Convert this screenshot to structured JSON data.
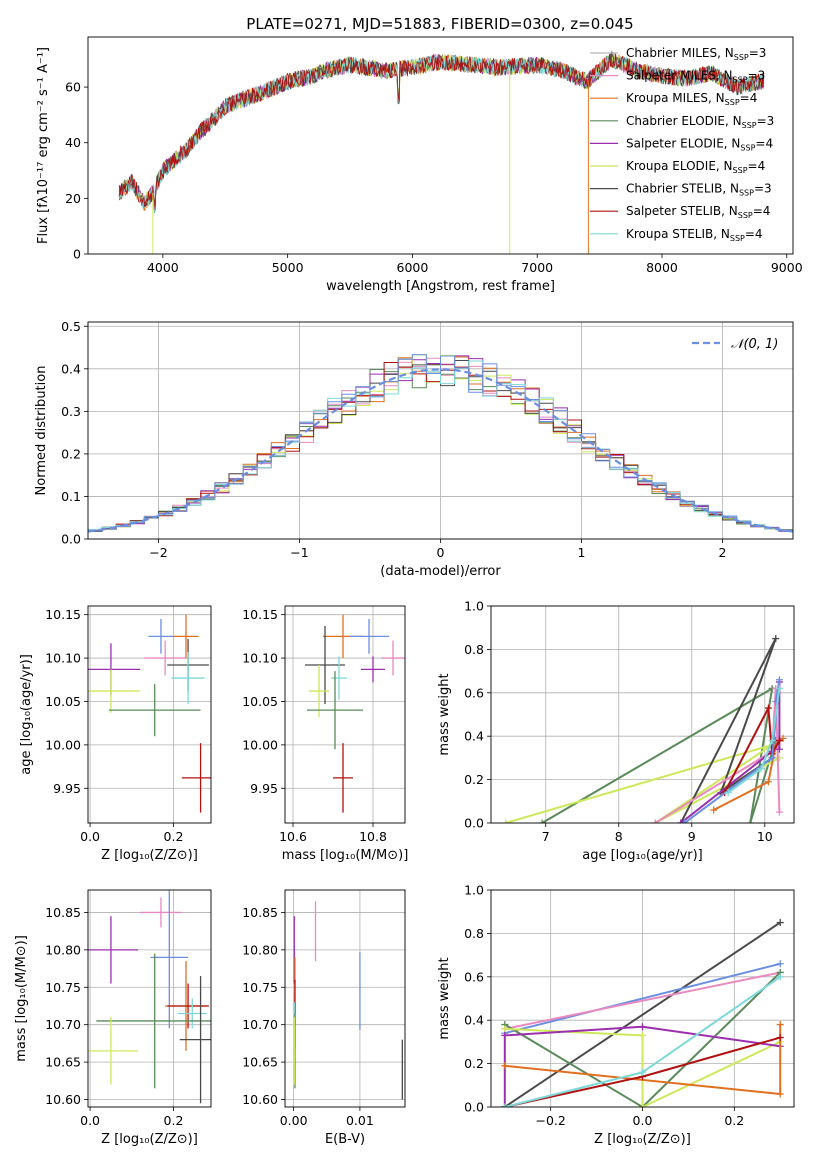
{
  "figure": {
    "title": "PLATE=0271, MJD=51883, FIBERID=0300, z=0.045"
  },
  "legend": [
    {
      "base": "Chabrier MILES, N",
      "sub": "SSP",
      "tail": "=3",
      "color": "#b8b8b8"
    },
    {
      "base": "Salpeter MILES, N",
      "sub": "SSP",
      "tail": "=3",
      "color": "#e889c0"
    },
    {
      "base": "Kroupa MILES, N",
      "sub": "SSP",
      "tail": "=4",
      "color": "#e07020"
    },
    {
      "base": "Chabrier ELODIE, N",
      "sub": "SSP",
      "tail": "=3",
      "color": "#5a8a5a"
    },
    {
      "base": "Salpeter ELODIE, N",
      "sub": "SSP",
      "tail": "=4",
      "color": "#9b2fae"
    },
    {
      "base": "Kroupa ELODIE, N",
      "sub": "SSP",
      "tail": "=4",
      "color": "#cde85a"
    },
    {
      "base": "Chabrier STELIB, N",
      "sub": "SSP",
      "tail": "=3",
      "color": "#4a4a4a"
    },
    {
      "base": "Salpeter STELIB, N",
      "sub": "SSP",
      "tail": "=4",
      "color": "#b01010"
    },
    {
      "base": "Kroupa STELIB, N",
      "sub": "SSP",
      "tail": "=4",
      "color": "#7dd8d8"
    }
  ],
  "extra_colors": {
    "blue": "#6a8fe0"
  },
  "chart_data": [
    {
      "id": "spectrum",
      "type": "line",
      "xlabel": "wavelength [Angstrom, rest frame]",
      "ylabel": "Flux [fλ10⁻¹⁷ erg cm⁻² s⁻¹ A⁻¹]",
      "xlim": [
        3400,
        9050
      ],
      "ylim": [
        0,
        78
      ],
      "xticks": [
        4000,
        5000,
        6000,
        7000,
        8000,
        9000
      ],
      "yticks": [
        0,
        20,
        40,
        60
      ],
      "grid": false,
      "legend_position": "upper right",
      "x": [
        3650,
        3750,
        3850,
        3920,
        4000,
        4100,
        4200,
        4300,
        4400,
        4500,
        4600,
        4800,
        5000,
        5200,
        5300,
        5500,
        5800,
        6000,
        6200,
        6500,
        6700,
        7000,
        7200,
        7400,
        7600,
        7800,
        8000,
        8200,
        8400,
        8600,
        8800
      ],
      "y": [
        22,
        26,
        18,
        22,
        30,
        34,
        38,
        44,
        48,
        53,
        55,
        58,
        62,
        64,
        66,
        68,
        66,
        67,
        69,
        68,
        67,
        68,
        66,
        62,
        70,
        66,
        64,
        63,
        65,
        60,
        62
      ],
      "drops": [
        {
          "x": 3920,
          "series": 5
        },
        {
          "x": 6780,
          "series": 5
        },
        {
          "x": 7410,
          "series": 2
        }
      ]
    },
    {
      "id": "residuals",
      "type": "histogram",
      "xlabel": "(data-model)/error",
      "ylabel": "Normed distribution",
      "xlim": [
        -2.5,
        2.5
      ],
      "ylim": [
        0,
        0.51
      ],
      "xticks": [
        -2,
        -1,
        0,
        1,
        2
      ],
      "yticks": [
        0.0,
        0.1,
        0.2,
        0.3,
        0.4,
        0.5
      ],
      "grid": true,
      "legend_position": "upper right",
      "reference_label": "𝒩(0, 1)",
      "reference_color": "#6a8fe0",
      "bin_width": 0.1
    },
    {
      "id": "age-vs-Z",
      "type": "errorbar",
      "xlabel": "Z [log₁₀(Z/Z⊙)]",
      "ylabel": "age  [log₁₀(age/yr)]",
      "xlim": [
        -0.005,
        0.29
      ],
      "ylim": [
        9.91,
        10.16
      ],
      "xticks": [
        0.0,
        0.2
      ],
      "yticks": [
        9.95,
        10.0,
        10.05,
        10.1,
        10.15
      ],
      "grid": true,
      "points": [
        {
          "c": "#e889c0",
          "x": 0.18,
          "y": 10.1,
          "xe": 0.05,
          "ye": 0.02
        },
        {
          "c": "#e07020",
          "x": 0.23,
          "y": 10.125,
          "xe": 0.03,
          "ye": 0.025
        },
        {
          "c": "#6a8fe0",
          "x": 0.17,
          "y": 10.125,
          "xe": 0.03,
          "ye": 0.02
        },
        {
          "c": "#9b2fae",
          "x": 0.05,
          "y": 10.087,
          "xe": 0.07,
          "ye": 0.03
        },
        {
          "c": "#cde85a",
          "x": 0.05,
          "y": 10.062,
          "xe": 0.07,
          "ye": 0.025
        },
        {
          "c": "#5a8a5a",
          "x": 0.155,
          "y": 10.04,
          "xe": 0.11,
          "ye": 0.03
        },
        {
          "c": "#4a4a4a",
          "x": 0.235,
          "y": 10.092,
          "xe": 0.05,
          "ye": 0.03
        },
        {
          "c": "#7dd8d8",
          "x": 0.235,
          "y": 10.077,
          "xe": 0.04,
          "ye": 0.03
        },
        {
          "c": "#b01010",
          "x": 0.265,
          "y": 9.962,
          "xe": 0.045,
          "ye": 0.04
        }
      ]
    },
    {
      "id": "age-vs-mass",
      "type": "errorbar",
      "xlabel": "mass [log₁₀(M/M⊙)]",
      "ylabel": "",
      "xlim": [
        10.58,
        10.88
      ],
      "ylim": [
        9.91,
        10.16
      ],
      "xticks": [
        10.6,
        10.8
      ],
      "yticks": [
        9.95,
        10.0,
        10.05,
        10.1,
        10.15
      ],
      "grid": true,
      "points": [
        {
          "c": "#e07020",
          "x": 10.725,
          "y": 10.125,
          "xe": 0.05,
          "ye": 0.025
        },
        {
          "c": "#6a8fe0",
          "x": 10.79,
          "y": 10.125,
          "xe": 0.05,
          "ye": 0.02
        },
        {
          "c": "#e889c0",
          "x": 10.85,
          "y": 10.1,
          "xe": 0.03,
          "ye": 0.02
        },
        {
          "c": "#9b2fae",
          "x": 10.8,
          "y": 10.087,
          "xe": 0.03,
          "ye": 0.015
        },
        {
          "c": "#4a4a4a",
          "x": 10.68,
          "y": 10.092,
          "xe": 0.05,
          "ye": 0.045
        },
        {
          "c": "#7dd8d8",
          "x": 10.715,
          "y": 10.077,
          "xe": 0.02,
          "ye": 0.025
        },
        {
          "c": "#cde85a",
          "x": 10.665,
          "y": 10.062,
          "xe": 0.025,
          "ye": 0.03
        },
        {
          "c": "#5a8a5a",
          "x": 10.705,
          "y": 10.04,
          "xe": 0.07,
          "ye": 0.045
        },
        {
          "c": "#b01010",
          "x": 10.725,
          "y": 9.962,
          "xe": 0.025,
          "ye": 0.04
        }
      ]
    },
    {
      "id": "weight-vs-age",
      "type": "line",
      "xlabel": "age  [log₁₀(age/yr)]",
      "ylabel": "mass weight",
      "xlim": [
        6.25,
        10.4
      ],
      "ylim": [
        0,
        1.0
      ],
      "xticks": [
        7,
        8,
        9,
        10
      ],
      "yticks": [
        0.0,
        0.2,
        0.4,
        0.6,
        0.8,
        1.0
      ],
      "grid": true,
      "lines": [
        {
          "c": "#5a8a5a",
          "pts": [
            [
              6.95,
              0.0
            ],
            [
              10.1,
              0.62
            ],
            [
              9.8,
              0.0
            ],
            [
              10.15,
              0.38
            ]
          ]
        },
        {
          "c": "#cde85a",
          "pts": [
            [
              6.45,
              0.0
            ],
            [
              10.1,
              0.36
            ],
            [
              8.5,
              0.0
            ],
            [
              10.2,
              0.3
            ]
          ]
        },
        {
          "c": "#4a4a4a",
          "pts": [
            [
              8.85,
              0.0
            ],
            [
              10.15,
              0.85
            ],
            [
              9.4,
              0.14
            ],
            [
              10.1,
              0.3
            ]
          ]
        },
        {
          "c": "#e889c0",
          "pts": [
            [
              8.5,
              0.0
            ],
            [
              10.1,
              0.33
            ],
            [
              10.15,
              0.62
            ],
            [
              10.2,
              0.05
            ]
          ]
        },
        {
          "c": "#e07020",
          "pts": [
            [
              9.3,
              0.06
            ],
            [
              10.05,
              0.19
            ],
            [
              10.15,
              0.36
            ],
            [
              10.25,
              0.39
            ]
          ]
        },
        {
          "c": "#9b2fae",
          "pts": [
            [
              8.85,
              0.0
            ],
            [
              10.1,
              0.33
            ],
            [
              10.2,
              0.65
            ],
            [
              10.2,
              0.34
            ]
          ]
        },
        {
          "c": "#b01010",
          "pts": [
            [
              9.45,
              0.14
            ],
            [
              10.05,
              0.53
            ],
            [
              10.1,
              0.32
            ],
            [
              10.2,
              0.38
            ]
          ]
        },
        {
          "c": "#6a8fe0",
          "pts": [
            [
              8.9,
              0.0
            ],
            [
              10.1,
              0.3
            ],
            [
              10.2,
              0.66
            ],
            [
              10.15,
              0.56
            ]
          ]
        },
        {
          "c": "#7dd8d8",
          "pts": [
            [
              9.5,
              0.14
            ],
            [
              9.95,
              0.25
            ],
            [
              10.1,
              0.38
            ],
            [
              10.2,
              0.62
            ]
          ]
        }
      ]
    },
    {
      "id": "mass-vs-Z",
      "type": "errorbar",
      "xlabel": "Z [log₁₀(Z/Z⊙)]",
      "ylabel": "mass [log₁₀(M/M⊙)]",
      "xlim": [
        -0.005,
        0.29
      ],
      "ylim": [
        10.59,
        10.88
      ],
      "xticks": [
        0.0,
        0.2
      ],
      "yticks": [
        10.6,
        10.65,
        10.7,
        10.75,
        10.8,
        10.85
      ],
      "grid": true,
      "points": [
        {
          "c": "#e889c0",
          "x": 0.17,
          "y": 10.85,
          "xe": 0.05,
          "ye": 0.02
        },
        {
          "c": "#9b2fae",
          "x": 0.05,
          "y": 10.8,
          "xe": 0.065,
          "ye": 0.045
        },
        {
          "c": "#6a8fe0",
          "x": 0.19,
          "y": 10.79,
          "xe": 0.045,
          "ye": 0.095
        },
        {
          "c": "#e07020",
          "x": 0.23,
          "y": 10.725,
          "xe": 0.05,
          "ye": 0.06
        },
        {
          "c": "#b01010",
          "x": 0.235,
          "y": 10.725,
          "xe": 0.05,
          "ye": 0.03
        },
        {
          "c": "#7dd8d8",
          "x": 0.245,
          "y": 10.715,
          "xe": 0.035,
          "ye": 0.02
        },
        {
          "c": "#5a8a5a",
          "x": 0.155,
          "y": 10.705,
          "xe": 0.14,
          "ye": 0.09
        },
        {
          "c": "#4a4a4a",
          "x": 0.265,
          "y": 10.68,
          "xe": 0.05,
          "ye": 0.085
        },
        {
          "c": "#cde85a",
          "x": 0.05,
          "y": 10.665,
          "xe": 0.065,
          "ye": 0.045
        }
      ]
    },
    {
      "id": "mass-vs-ebv",
      "type": "errorbar",
      "xlabel": "E(B-V)",
      "ylabel": "",
      "xlim": [
        -0.0013,
        0.0168
      ],
      "ylim": [
        10.59,
        10.88
      ],
      "xticks": [
        0.0,
        0.01
      ],
      "yticks": [
        10.6,
        10.65,
        10.7,
        10.75,
        10.8,
        10.85
      ],
      "grid": true,
      "points": [
        {
          "c": "#e889c0",
          "x": 0.0033,
          "y": 10.825,
          "xe": 0,
          "ye": 0.04
        },
        {
          "c": "#9b2fae",
          "x": 0.0001,
          "y": 10.8,
          "xe": 0,
          "ye": 0.045
        },
        {
          "c": "#6a8fe0",
          "x": 0.01,
          "y": 10.745,
          "xe": 0,
          "ye": 0.052
        },
        {
          "c": "#e07020",
          "x": 0.0002,
          "y": 10.73,
          "xe": 0,
          "ye": 0.06
        },
        {
          "c": "#b01010",
          "x": 0.0002,
          "y": 10.73,
          "xe": 0,
          "ye": 0.03
        },
        {
          "c": "#7dd8d8",
          "x": 0.0001,
          "y": 10.71,
          "xe": 0,
          "ye": 0.02
        },
        {
          "c": "#5a8a5a",
          "x": 0.0002,
          "y": 10.665,
          "xe": 0,
          "ye": 0.05
        },
        {
          "c": "#cde85a",
          "x": 0.0001,
          "y": 10.665,
          "xe": 0,
          "ye": 0.045
        },
        {
          "c": "#4a4a4a",
          "x": 0.0164,
          "y": 10.64,
          "xe": 0,
          "ye": 0.04
        }
      ]
    },
    {
      "id": "weight-vs-Z",
      "type": "line",
      "xlabel": "Z [log₁₀(Z/Z⊙)]",
      "ylabel": "mass weight",
      "xlim": [
        -0.33,
        0.33
      ],
      "ylim": [
        0,
        1.0
      ],
      "xticks": [
        -0.2,
        0.0,
        0.2
      ],
      "yticks": [
        0.0,
        0.2,
        0.4,
        0.6,
        0.8,
        1.0
      ],
      "grid": true,
      "lines": [
        {
          "c": "#4a4a4a",
          "pts": [
            [
              -0.3,
              0.0
            ],
            [
              0.3,
              0.85
            ]
          ]
        },
        {
          "c": "#6a8fe0",
          "pts": [
            [
              -0.3,
              0.34
            ],
            [
              0.3,
              0.66
            ]
          ]
        },
        {
          "c": "#e889c0",
          "pts": [
            [
              -0.3,
              0.36
            ],
            [
              0.3,
              0.62
            ]
          ]
        },
        {
          "c": "#5a8a5a",
          "pts": [
            [
              -0.3,
              0.38
            ],
            [
              0.0,
              0.0
            ],
            [
              0.3,
              0.62
            ]
          ]
        },
        {
          "c": "#cde85a",
          "pts": [
            [
              -0.3,
              0.36
            ],
            [
              0.0,
              0.33
            ],
            [
              0.0,
              0.0
            ],
            [
              0.3,
              0.3
            ]
          ]
        },
        {
          "c": "#9b2fae",
          "pts": [
            [
              -0.3,
              0.0
            ],
            [
              -0.3,
              0.33
            ],
            [
              0.0,
              0.37
            ],
            [
              0.3,
              0.28
            ]
          ]
        },
        {
          "c": "#e07020",
          "pts": [
            [
              -0.3,
              0.19
            ],
            [
              0.3,
              0.06
            ],
            [
              0.3,
              0.38
            ]
          ]
        },
        {
          "c": "#b01010",
          "pts": [
            [
              -0.3,
              0.0
            ],
            [
              0.0,
              0.14
            ],
            [
              0.3,
              0.32
            ]
          ]
        },
        {
          "c": "#7dd8d8",
          "pts": [
            [
              -0.3,
              0.0
            ],
            [
              0.0,
              0.16
            ],
            [
              0.3,
              0.6
            ]
          ]
        }
      ]
    }
  ]
}
